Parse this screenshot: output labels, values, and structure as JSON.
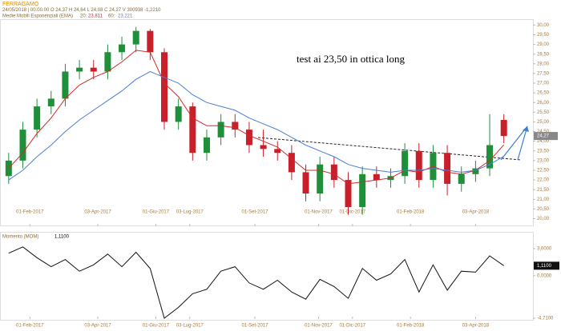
{
  "chart_data": [
    {
      "type": "candlestick",
      "title": "FERRAGAMO",
      "info": "24/05/2018 | 00.00.00  O 24,37  H 24,64  L 24,08  C 24,27  V 300938  -1,2210",
      "indicator": "Medie Mobili Esponenziali (EMA)",
      "annotation": "test ai 23,50 in ottica long",
      "last_label": "24,27",
      "up_color": "#1f8f3a",
      "down_color": "#c8202a",
      "open": [
        22.2,
        23.0,
        24.6,
        25.8,
        26.2,
        27.6,
        27.8,
        27.6,
        28.6,
        29.0,
        29.7,
        28.6,
        25.0,
        25.8,
        23.4,
        24.2,
        25.0,
        24.6,
        23.8,
        23.6,
        23.4,
        22.4,
        21.3,
        22.8,
        22.0,
        20.6,
        22.3,
        22.0,
        22.2,
        23.5,
        22.0,
        23.4,
        21.8,
        22.3,
        22.6,
        25.1
      ],
      "high": [
        23.4,
        25.0,
        26.2,
        26.6,
        28.0,
        28.2,
        28.2,
        29.0,
        29.4,
        29.9,
        29.8,
        28.8,
        26.2,
        26.0,
        24.6,
        25.4,
        25.4,
        25.0,
        24.6,
        24.0,
        23.8,
        22.8,
        23.2,
        23.2,
        22.4,
        22.7,
        22.7,
        22.6,
        23.9,
        23.9,
        23.8,
        23.8,
        22.7,
        23.0,
        25.4,
        25.4
      ],
      "low": [
        21.8,
        22.6,
        24.2,
        25.4,
        25.8,
        27.2,
        27.2,
        27.2,
        28.2,
        28.6,
        28.2,
        24.6,
        24.6,
        23.0,
        23.0,
        23.8,
        24.2,
        23.4,
        23.2,
        23.0,
        22.0,
        20.9,
        20.9,
        21.6,
        20.2,
        20.2,
        21.6,
        21.6,
        21.8,
        21.6,
        21.6,
        21.2,
        21.4,
        21.9,
        22.2,
        23.9
      ],
      "close": [
        23.0,
        24.6,
        25.8,
        26.2,
        27.6,
        27.8,
        27.6,
        28.6,
        29.0,
        29.7,
        28.6,
        25.0,
        25.8,
        23.4,
        24.2,
        25.0,
        24.6,
        23.8,
        23.6,
        23.4,
        22.4,
        21.3,
        22.8,
        22.0,
        20.6,
        22.3,
        22.0,
        22.2,
        23.5,
        22.0,
        23.4,
        21.8,
        22.3,
        22.6,
        23.8,
        24.27
      ],
      "series": [
        {
          "name": "20:",
          "color": "#d62728",
          "legend_value": "23,811",
          "values": [
            22.6,
            23.4,
            24.4,
            25.2,
            26.2,
            26.9,
            27.3,
            27.6,
            28.1,
            28.7,
            28.6,
            27.0,
            26.3,
            25.2,
            24.8,
            24.8,
            24.7,
            24.3,
            24.0,
            23.7,
            23.1,
            22.5,
            22.5,
            22.3,
            21.8,
            21.9,
            22.0,
            22.1,
            22.5,
            22.4,
            22.7,
            22.4,
            22.3,
            22.5,
            23.0,
            23.811
          ]
        },
        {
          "name": "60:",
          "color": "#4a7fd4",
          "legend_value": "23,221",
          "values": [
            22.0,
            22.5,
            23.2,
            23.8,
            24.5,
            25.1,
            25.6,
            26.1,
            26.6,
            27.2,
            27.6,
            27.3,
            27.0,
            26.4,
            26.0,
            25.8,
            25.6,
            25.2,
            24.9,
            24.6,
            24.2,
            23.8,
            23.5,
            23.2,
            22.8,
            22.6,
            22.5,
            22.4,
            22.5,
            22.5,
            22.6,
            22.5,
            22.4,
            22.5,
            22.8,
            23.221
          ]
        }
      ],
      "xlim": [
        -0.5,
        37
      ],
      "xticks": [
        {
          "value": 1.5,
          "label": "01-Feb-2017"
        },
        {
          "value": 6.3,
          "label": "03-Apr-2017"
        },
        {
          "value": 10.4,
          "label": "01-Giu-2017"
        },
        {
          "value": 12.8,
          "label": "03-Lug-2017"
        },
        {
          "value": 17.4,
          "label": "01-Set-2017"
        },
        {
          "value": 21.9,
          "label": "01-Nov-2017"
        },
        {
          "value": 24.3,
          "label": "01-Dic-2017"
        },
        {
          "value": 28.4,
          "label": "01-Feb-2018"
        },
        {
          "value": 33,
          "label": "03-Apr-2018"
        }
      ],
      "ylim": [
        19.65,
        30.8
      ],
      "yticks": [
        {
          "value": 30,
          "label": "30,00"
        },
        {
          "value": 29.5,
          "label": "29,50"
        },
        {
          "value": 29,
          "label": "29,00"
        },
        {
          "value": 28.5,
          "label": "28,50"
        },
        {
          "value": 28,
          "label": "28,00"
        },
        {
          "value": 27.5,
          "label": "27,50"
        },
        {
          "value": 27,
          "label": "27,00"
        },
        {
          "value": 26.5,
          "label": "26,50"
        },
        {
          "value": 26,
          "label": "26,00"
        },
        {
          "value": 25.5,
          "label": "25,50"
        },
        {
          "value": 25,
          "label": "25,00"
        },
        {
          "value": 24.5,
          "label": "24,50"
        },
        {
          "value": 24,
          "label": "24,00"
        },
        {
          "value": 23.5,
          "label": "23,50"
        },
        {
          "value": 23,
          "label": "23,00"
        },
        {
          "value": 22.5,
          "label": "22,50"
        },
        {
          "value": 22,
          "label": "22,00"
        },
        {
          "value": 21.5,
          "label": "21,50"
        },
        {
          "value": 21,
          "label": "21,00"
        },
        {
          "value": 20.5,
          "label": "20,50"
        },
        {
          "value": 20,
          "label": "20,00"
        }
      ]
    },
    {
      "type": "line",
      "title": "Momento (MOM)",
      "color": "#111111",
      "value_label": "1,1100",
      "values": [
        2.5,
        3.2,
        2.0,
        1.0,
        1.8,
        0.5,
        1.2,
        2.4,
        1.0,
        2.6,
        0.8,
        -4.71,
        -3.5,
        -2.0,
        -1.5,
        0.5,
        1.0,
        -0.8,
        -1.5,
        -0.5,
        -1.8,
        -2.6,
        -0.4,
        -1.2,
        -2.5,
        0.8,
        -0.5,
        0.2,
        1.8,
        -1.8,
        1.2,
        -1.6,
        0.5,
        0.4,
        2.2,
        1.11
      ],
      "xlim": [
        -0.5,
        37
      ],
      "xticks": [
        {
          "value": 1.5,
          "label": "01-Feb-2017"
        },
        {
          "value": 6.3,
          "label": "03-Apr-2017"
        },
        {
          "value": 10.4,
          "label": "01-Giu-2017"
        },
        {
          "value": 12.8,
          "label": "03-Lug-2017"
        },
        {
          "value": 17.4,
          "label": "01-Set-2017"
        },
        {
          "value": 21.9,
          "label": "01-Nov-2017"
        },
        {
          "value": 24.3,
          "label": "01-Dic-2017"
        },
        {
          "value": 28.4,
          "label": "01-Feb-2018"
        },
        {
          "value": 33,
          "label": "03-Apr-2018"
        }
      ],
      "ylim": [
        -4.71,
        3.8
      ],
      "yticks": [
        {
          "value": 3,
          "label": "3,0000"
        },
        {
          "value": 0,
          "label": "0,0000"
        },
        {
          "value": -4.71,
          "label": "-4,7100"
        }
      ]
    }
  ]
}
